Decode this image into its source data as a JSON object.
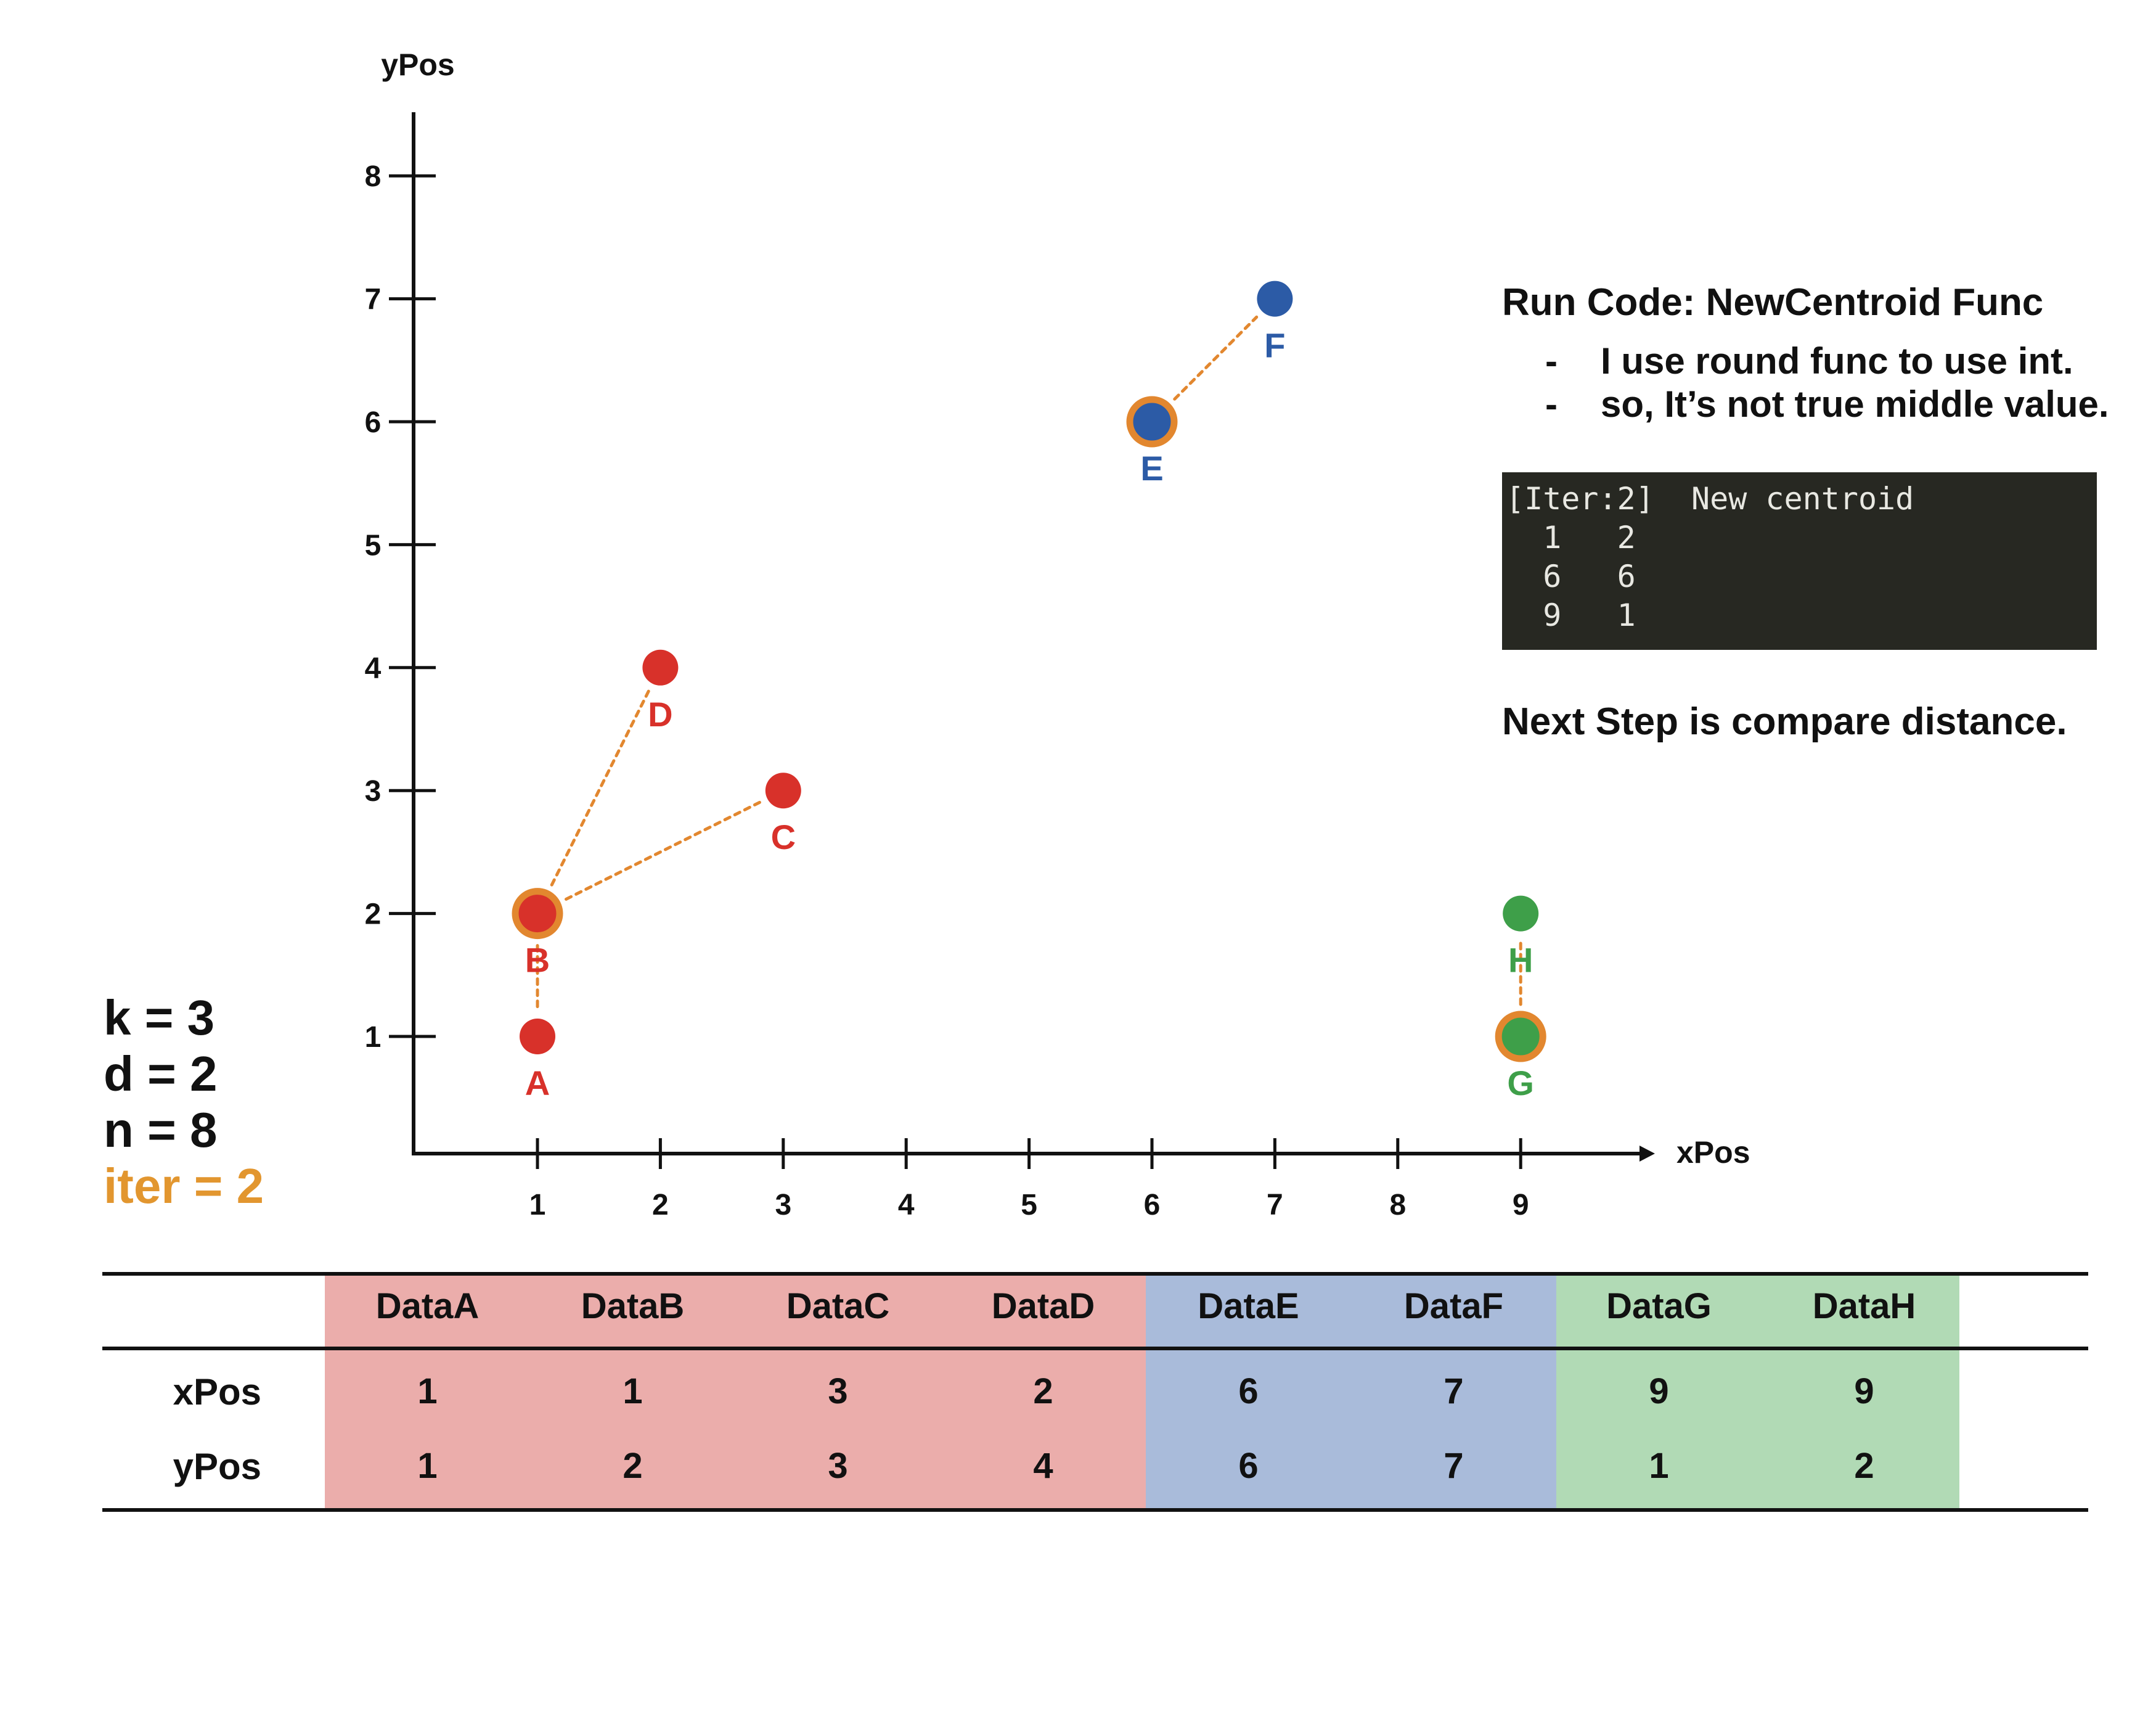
{
  "chart_data": {
    "type": "scatter",
    "xlabel": "xPos",
    "ylabel": "yPos",
    "xticks": [
      1,
      2,
      3,
      4,
      5,
      6,
      7,
      8,
      9
    ],
    "yticks": [
      1,
      2,
      3,
      4,
      5,
      6,
      7,
      8
    ],
    "points": [
      {
        "label": "A",
        "x": 1,
        "y": 1,
        "cluster": "red"
      },
      {
        "label": "B",
        "x": 1,
        "y": 2,
        "cluster": "red",
        "centroid": true
      },
      {
        "label": "C",
        "x": 3,
        "y": 3,
        "cluster": "red"
      },
      {
        "label": "D",
        "x": 2,
        "y": 4,
        "cluster": "red"
      },
      {
        "label": "E",
        "x": 6,
        "y": 6,
        "cluster": "blue",
        "centroid": true
      },
      {
        "label": "F",
        "x": 7,
        "y": 7,
        "cluster": "blue"
      },
      {
        "label": "G",
        "x": 9,
        "y": 1,
        "cluster": "green",
        "centroid": true
      },
      {
        "label": "H",
        "x": 9,
        "y": 2,
        "cluster": "green"
      }
    ],
    "links": [
      [
        "B",
        "A"
      ],
      [
        "B",
        "C"
      ],
      [
        "B",
        "D"
      ],
      [
        "E",
        "F"
      ],
      [
        "G",
        "H"
      ]
    ],
    "colors": {
      "red": "#d8312a",
      "blue": "#2c5ba6",
      "green": "#3e9f49",
      "centroid_ring": "#e2872f",
      "link": "#e2872f"
    }
  },
  "params": {
    "k": "k = 3",
    "d": "d = 2",
    "n": "n = 8",
    "iter": "iter = 2",
    "iter_color": "#e2962f"
  },
  "notes": {
    "title": "Run Code: NewCentroid Func",
    "bullets": [
      "I use round func to use int.",
      "so, It’s not true middle value."
    ],
    "next_step": "Next Step is compare distance."
  },
  "console": {
    "header": "[Iter:2]  New centroid",
    "rows": [
      "  1   2",
      "  6   6",
      "  9   1"
    ]
  },
  "table": {
    "row_headers": [
      "xPos",
      "yPos"
    ],
    "columns": [
      {
        "name": "DataA",
        "x": "1",
        "y": "1",
        "group": "red"
      },
      {
        "name": "DataB",
        "x": "1",
        "y": "2",
        "group": "red"
      },
      {
        "name": "DataC",
        "x": "3",
        "y": "3",
        "group": "red"
      },
      {
        "name": "DataD",
        "x": "2",
        "y": "4",
        "group": "red"
      },
      {
        "name": "DataE",
        "x": "6",
        "y": "6",
        "group": "blue"
      },
      {
        "name": "DataF",
        "x": "7",
        "y": "7",
        "group": "blue"
      },
      {
        "name": "DataG",
        "x": "9",
        "y": "1",
        "group": "green"
      },
      {
        "name": "DataH",
        "x": "9",
        "y": "2",
        "group": "green"
      }
    ],
    "band_colors": {
      "red": "#ebadab",
      "blue": "#a9bbda",
      "green": "#b1dab5"
    }
  }
}
